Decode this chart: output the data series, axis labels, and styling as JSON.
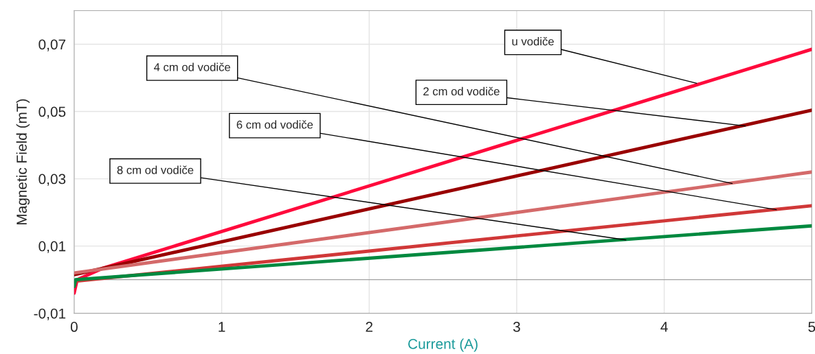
{
  "chart_data": {
    "type": "line",
    "xlabel": "Current (A)",
    "ylabel": "Magnetic Field (mT)",
    "xlim": [
      0,
      5
    ],
    "xticks": [
      0,
      1,
      2,
      3,
      4,
      5
    ],
    "ylim": [
      -0.01,
      0.08
    ],
    "yticks": [
      {
        "value": -0.01,
        "label": "-0,01"
      },
      {
        "value": 0.01,
        "label": "0,01"
      },
      {
        "value": 0.03,
        "label": "0,03"
      },
      {
        "value": 0.05,
        "label": "0,05"
      },
      {
        "value": 0.07,
        "label": "0,07"
      }
    ],
    "grid": true,
    "legend": false,
    "ref_lines": [
      {
        "axis": "y",
        "value": 0,
        "color": "#a0a0a0"
      }
    ],
    "series": [
      {
        "color": "#ff0a3c",
        "x": [
          0,
          0.02,
          0.2,
          5
        ],
        "values": [
          -0.004,
          0.0,
          0.0035,
          0.0685
        ]
      },
      {
        "color": "#990000",
        "x": [
          0,
          5
        ],
        "values": [
          0.0015,
          0.0504
        ]
      },
      {
        "color": "#d46a6a",
        "x": [
          0,
          5
        ],
        "values": [
          0.002,
          0.032
        ]
      },
      {
        "color": "#d03838",
        "x": [
          0,
          5
        ],
        "values": [
          -0.0005,
          0.022
        ]
      },
      {
        "color": "#00893f",
        "x": [
          0,
          0.01,
          5
        ],
        "values": [
          -0.002,
          0.0,
          0.016
        ]
      }
    ],
    "annotations": [
      {
        "text": "u vodiče",
        "x": 4.22,
        "y": 0.0584
      },
      {
        "text": "2 cm od vodiče",
        "x": 4.55,
        "y": 0.0457
      },
      {
        "text": "4 cm od vodiče",
        "x": 4.46,
        "y": 0.0286
      },
      {
        "text": "6 cm od vodiče",
        "x": 4.76,
        "y": 0.0208
      },
      {
        "text": "8 cm od vodiče",
        "x": 3.74,
        "y": 0.0118
      }
    ]
  }
}
